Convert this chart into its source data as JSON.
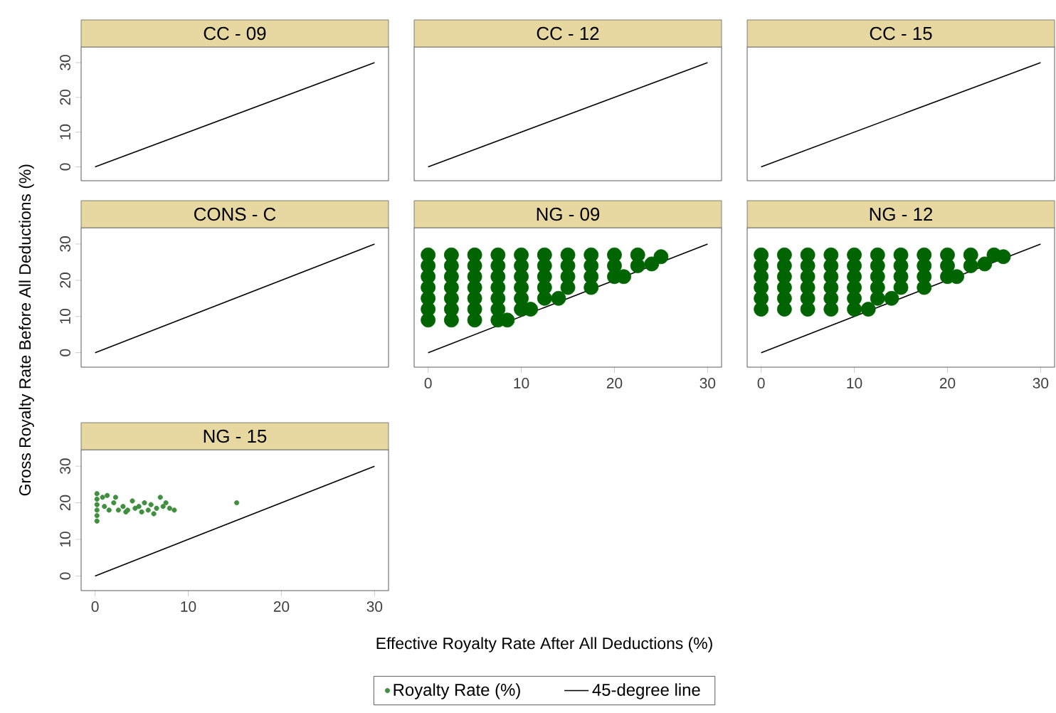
{
  "chart_data": [
    {
      "type": "scatter",
      "title": "CC - 09",
      "xlim": [
        -1.5,
        31.5
      ],
      "ylim": [
        -4,
        34.5
      ],
      "yticks": [
        0,
        10,
        20,
        30
      ],
      "tick_labels": "y",
      "series": [
        {
          "type": "line",
          "color": "#000000",
          "x": [
            0,
            30
          ],
          "values": [
            0,
            30
          ]
        }
      ]
    },
    {
      "type": "scatter",
      "title": "CC - 12",
      "xlim": [
        -1.5,
        31.5
      ],
      "ylim": [
        -4,
        34.5
      ],
      "tick_labels": false,
      "series": [
        {
          "type": "line",
          "color": "#000000",
          "x": [
            0,
            30
          ],
          "values": [
            0,
            30
          ]
        }
      ]
    },
    {
      "type": "scatter",
      "title": "CC - 15",
      "xlim": [
        -1.5,
        31.5
      ],
      "ylim": [
        -4,
        34.5
      ],
      "tick_labels": false,
      "series": [
        {
          "type": "line",
          "color": "#000000",
          "x": [
            0,
            30
          ],
          "values": [
            0,
            30
          ]
        }
      ]
    },
    {
      "type": "scatter",
      "title": "CONS - C",
      "xlim": [
        -1.5,
        31.5
      ],
      "ylim": [
        -4,
        34.5
      ],
      "yticks": [
        0,
        10,
        20,
        30
      ],
      "tick_labels": "y",
      "series": [
        {
          "type": "line",
          "color": "#000000",
          "x": [
            0,
            30
          ],
          "values": [
            0,
            30
          ]
        }
      ]
    },
    {
      "type": "scatter",
      "title": "NG - 09",
      "xlim": [
        -1.5,
        31.5
      ],
      "ylim": [
        -4,
        34.5
      ],
      "xticks": [
        0,
        10,
        20,
        30
      ],
      "tick_labels": "x",
      "series": [
        {
          "marker": "circle",
          "color": "#006400",
          "x": [
            0,
            2.5,
            5,
            7.5,
            10,
            12.5,
            15,
            17.5,
            20,
            22.5,
            25,
            0,
            2.5,
            5,
            7.5,
            10,
            12.5,
            15,
            17.5,
            20,
            22.5,
            24,
            0,
            2.5,
            5,
            7.5,
            10,
            12.5,
            15,
            17.5,
            20,
            21,
            0,
            2.5,
            5,
            7.5,
            10,
            12.5,
            15,
            17.5,
            0,
            2.5,
            5,
            7.5,
            10,
            12.5,
            14,
            0,
            2.5,
            5,
            7.5,
            10,
            11,
            0,
            2.5,
            5,
            7.5,
            8.5
          ],
          "values": [
            27,
            27,
            27,
            27,
            27,
            27,
            27,
            27,
            27,
            27,
            26.5,
            24,
            24,
            24,
            24,
            24,
            24,
            24,
            24,
            24,
            24,
            24.5,
            21,
            21,
            21,
            21,
            21,
            21,
            21,
            21,
            21,
            21,
            18,
            18,
            18,
            18,
            18,
            18,
            18,
            18,
            15,
            15,
            15,
            15,
            15,
            15,
            15,
            12,
            12,
            12,
            12,
            12,
            12,
            9,
            9,
            9,
            9,
            9
          ]
        },
        {
          "type": "line",
          "color": "#000000",
          "x": [
            0,
            30
          ],
          "values": [
            0,
            30
          ]
        }
      ]
    },
    {
      "type": "scatter",
      "title": "NG - 12",
      "xlim": [
        -1.5,
        31.5
      ],
      "ylim": [
        -4,
        34.5
      ],
      "xticks": [
        0,
        10,
        20,
        30
      ],
      "tick_labels": "x",
      "series": [
        {
          "marker": "circle",
          "color": "#006400",
          "x": [
            0,
            2.5,
            5,
            7.5,
            10,
            12.5,
            15,
            17.5,
            20,
            22.5,
            25,
            26,
            0,
            2.5,
            5,
            7.5,
            10,
            12.5,
            15,
            17.5,
            20,
            22.5,
            24,
            0,
            2.5,
            5,
            7.5,
            10,
            12.5,
            15,
            17.5,
            20,
            21,
            0,
            2.5,
            5,
            7.5,
            10,
            12.5,
            15,
            17.5,
            0,
            2.5,
            5,
            7.5,
            10,
            12.5,
            14,
            0,
            2.5,
            5,
            7.5,
            10,
            11.5
          ],
          "values": [
            27,
            27,
            27,
            27,
            27,
            27,
            27,
            27,
            27,
            27,
            27,
            26.5,
            24,
            24,
            24,
            24,
            24,
            24,
            24,
            24,
            24,
            24,
            24.5,
            21,
            21,
            21,
            21,
            21,
            21,
            21,
            21,
            21,
            21,
            18,
            18,
            18,
            18,
            18,
            18,
            18,
            18,
            15,
            15,
            15,
            15,
            15,
            15,
            15,
            12,
            12,
            12,
            12,
            12,
            12
          ]
        },
        {
          "type": "line",
          "color": "#000000",
          "x": [
            0,
            30
          ],
          "values": [
            0,
            30
          ]
        }
      ]
    },
    {
      "type": "scatter",
      "title": "NG - 15",
      "xlabel": "Effective Royalty Rate After All Deductions (%)",
      "ylabel": "Gross Royalty Rate Before All Deductions (%)",
      "legend": "bottom",
      "xlim": [
        -1.5,
        31.5
      ],
      "ylim": [
        -4,
        34.5
      ],
      "xticks": [
        0,
        10,
        20,
        30
      ],
      "yticks": [
        0,
        10,
        20,
        30
      ],
      "series": [
        {
          "marker": "circle",
          "name": "Royalty Rate (%)",
          "color": "#3f8f3f",
          "x": [
            0.2,
            0.2,
            0.2,
            0.2,
            0.2,
            0.2,
            0.8,
            1,
            1.3,
            1.5,
            2,
            2.2,
            2.5,
            3,
            3.3,
            3.5,
            4,
            4.3,
            4.7,
            5,
            5.3,
            5.7,
            6,
            6.3,
            6.6,
            7,
            7.3,
            7.6,
            8,
            8.5,
            15.2
          ],
          "values": [
            15,
            16.5,
            18,
            19.5,
            21,
            22.5,
            21.5,
            19,
            22,
            18,
            20,
            21.5,
            18,
            19,
            17.5,
            18,
            20.5,
            18.5,
            19,
            17.5,
            20,
            18,
            19.5,
            17,
            18.5,
            21.5,
            19,
            20,
            18.5,
            18,
            20
          ]
        },
        {
          "type": "line",
          "name": "45-degree line",
          "color": "#000000",
          "x": [
            0,
            30
          ],
          "values": [
            0,
            30
          ]
        }
      ]
    }
  ]
}
